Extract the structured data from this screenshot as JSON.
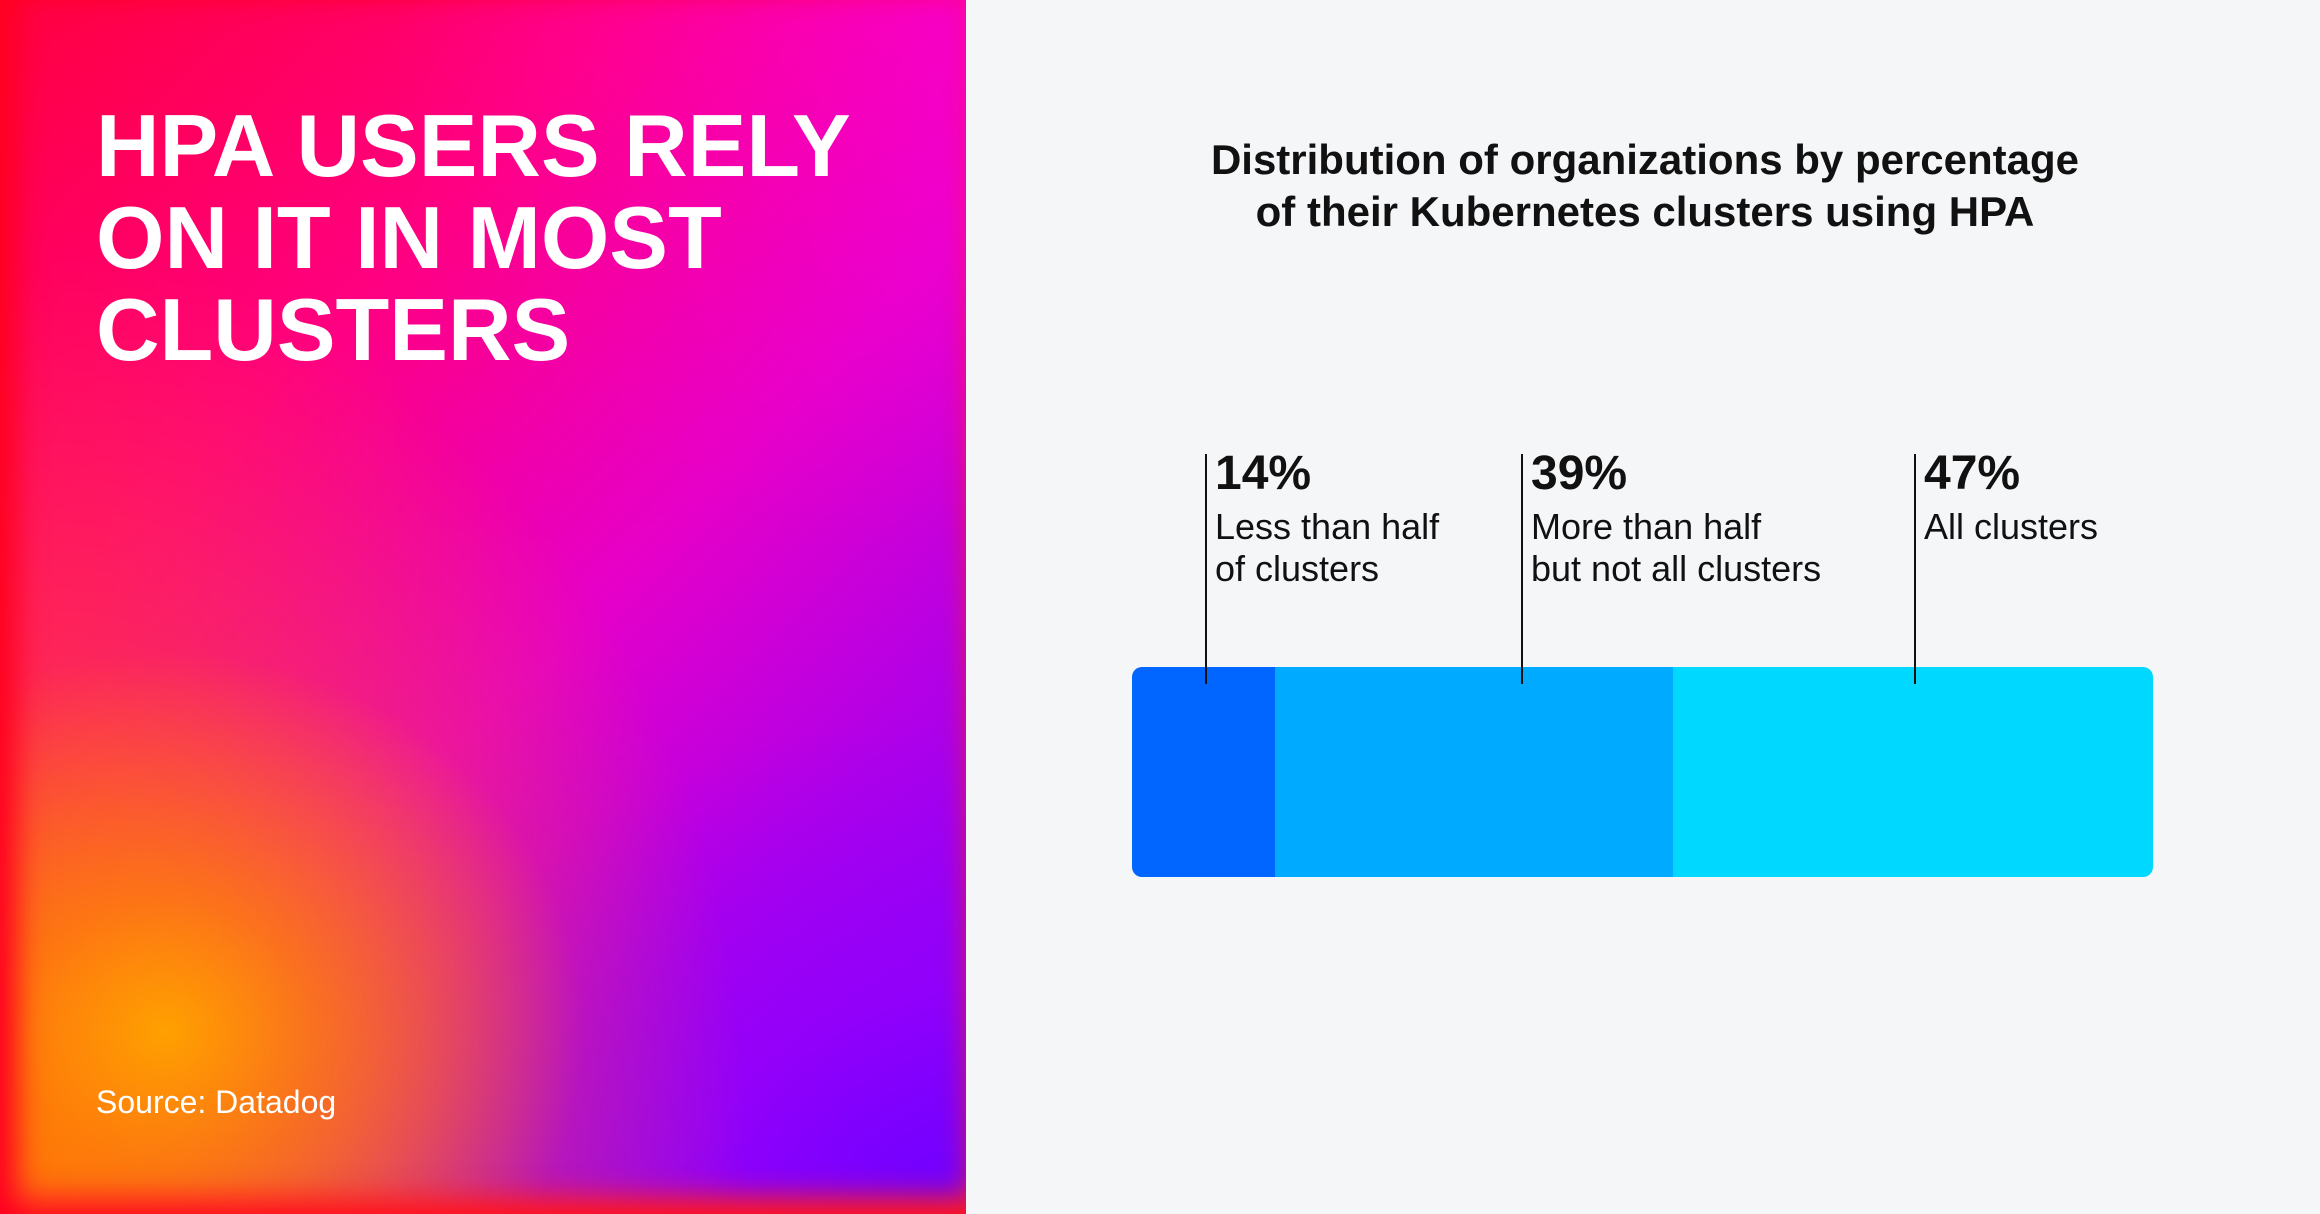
{
  "headline": [
    "HPA USERS RELY",
    "ON IT IN MOST",
    "CLUSTERS"
  ],
  "source": "Source: Datadog",
  "chart_data": {
    "type": "bar",
    "orientation": "horizontal-stacked",
    "title": [
      "Distribution of organizations by percentage",
      "of their Kubernetes clusters using HPA"
    ],
    "unit": "%",
    "categories": [
      {
        "value_label": "14%",
        "label_lines": [
          "Less than half",
          "of clusters"
        ],
        "value": 14,
        "color": "#0066ff"
      },
      {
        "value_label": "39%",
        "label_lines": [
          "More than half",
          "but not all clusters"
        ],
        "value": 39,
        "color": "#00aaff"
      },
      {
        "value_label": "47%",
        "label_lines": [
          "All clusters"
        ],
        "value": 47,
        "color": "#00d8ff"
      }
    ],
    "xlim": [
      0,
      100
    ]
  }
}
